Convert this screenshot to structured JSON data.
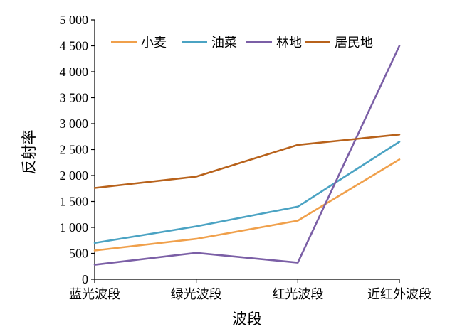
{
  "chart_data": {
    "type": "line",
    "categories": [
      "蓝光波段",
      "绿光波段",
      "红光波段",
      "近红外波段"
    ],
    "series": [
      {
        "name": "小麦",
        "color": "#F0A04B",
        "values": [
          555,
          780,
          1130,
          2310
        ]
      },
      {
        "name": "油菜",
        "color": "#4BA3C3",
        "values": [
          700,
          1020,
          1400,
          2650
        ]
      },
      {
        "name": "林地",
        "color": "#7B5FA6",
        "values": [
          280,
          510,
          320,
          4500
        ]
      },
      {
        "name": "居民地",
        "color": "#B8621B",
        "values": [
          1760,
          1980,
          2590,
          2790
        ]
      }
    ],
    "xlabel": "波段",
    "ylabel": "反射率",
    "ylim": [
      0,
      5000
    ],
    "yticks": [
      0,
      500,
      1000,
      1500,
      2000,
      2500,
      3000,
      3500,
      4000,
      4500,
      5000
    ],
    "ytick_labels": [
      "0",
      "500",
      "1 000",
      "1 500",
      "2 000",
      "2 500",
      "3 000",
      "3 500",
      "4 000",
      "4 500",
      "5 000"
    ],
    "grid": false,
    "legend": "top-left inside, horizontal"
  }
}
